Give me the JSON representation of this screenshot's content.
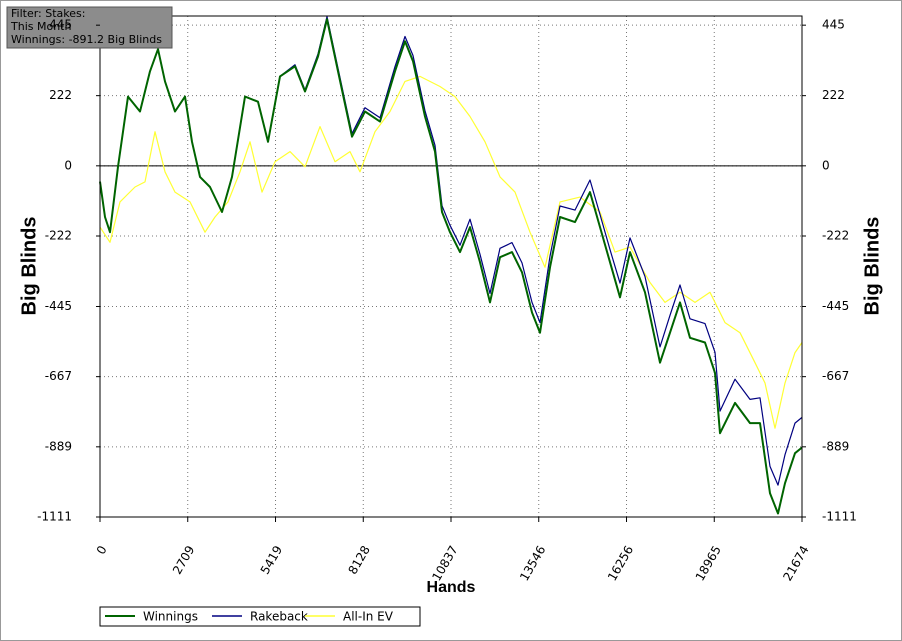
{
  "chart_data": {
    "type": "line",
    "annotations": [
      "Filter: Stakes:",
      "This Month",
      "Winnings: -891.2 Big Blinds"
    ],
    "xlabel": "Hands",
    "ylabel": "Big Blinds",
    "xlim": [
      0,
      21674
    ],
    "xticks": [
      0,
      2709,
      5419,
      8128,
      10837,
      13546,
      16256,
      18965,
      21674
    ],
    "ylim": [
      -1111,
      474
    ],
    "yticks": [
      445,
      222,
      0,
      -222,
      -445,
      -667,
      -889,
      -1111
    ],
    "grid": true,
    "series": [
      {
        "name": "Winnings",
        "color": "#006400",
        "x": [
          0,
          154,
          309,
          556,
          865,
          1235,
          1544,
          1791,
          2007,
          2316,
          2624,
          2841,
          3088,
          3396,
          3767,
          4076,
          4477,
          4878,
          5187,
          5558,
          6021,
          6329,
          6731,
          7009,
          7348,
          7781,
          8182,
          8645,
          9108,
          9417,
          9664,
          10034,
          10343,
          10559,
          10806,
          11115,
          11424,
          11733,
          12041,
          12350,
          12721,
          13029,
          13338,
          13585,
          13894,
          14203,
          14666,
          15129,
          15438,
          15746,
          16055,
          16364,
          16827,
          17290,
          17599,
          17908,
          18216,
          18679,
          18988,
          19143,
          19606,
          20069,
          20378,
          20686,
          20933,
          21148,
          21458,
          21674
        ],
        "values": [
          -50,
          -162,
          -210,
          -3,
          219,
          172,
          299,
          369,
          267,
          172,
          219,
          76,
          -35,
          -67,
          -146,
          -35,
          219,
          203,
          76,
          283,
          315,
          235,
          346,
          464,
          299,
          92,
          172,
          140,
          299,
          394,
          331,
          156,
          45,
          -146,
          -210,
          -273,
          -194,
          -305,
          -432,
          -289,
          -273,
          -337,
          -464,
          -528,
          -321,
          -162,
          -178,
          -83,
          -194,
          -305,
          -416,
          -273,
          -400,
          -623,
          -528,
          -432,
          -544,
          -559,
          -655,
          -846,
          -750,
          -814,
          -814,
          -1036,
          -1100,
          -1004,
          -909,
          -891.2
        ]
      },
      {
        "name": "Rakeback",
        "color": "#000080",
        "x": [
          0,
          154,
          309,
          556,
          865,
          1235,
          1544,
          1791,
          2007,
          2316,
          2624,
          2841,
          3088,
          3396,
          3767,
          4076,
          4477,
          4878,
          5187,
          5558,
          6021,
          6329,
          6731,
          7009,
          7348,
          7781,
          8182,
          8645,
          9108,
          9417,
          9664,
          10034,
          10343,
          10559,
          10806,
          11115,
          11424,
          11733,
          12041,
          12350,
          12721,
          13029,
          13338,
          13585,
          13894,
          14203,
          14666,
          15129,
          15438,
          15746,
          16055,
          16364,
          16827,
          17290,
          17599,
          17908,
          18216,
          18679,
          18988,
          19143,
          19606,
          20069,
          20378,
          20686,
          20933,
          21148,
          21458,
          21674
        ],
        "values": [
          -50,
          -162,
          -210,
          -3,
          219,
          172,
          299,
          369,
          267,
          172,
          219,
          76,
          -35,
          -67,
          -146,
          -35,
          219,
          203,
          76,
          283,
          320,
          240,
          354,
          472,
          309,
          102,
          184,
          152,
          314,
          409,
          349,
          174,
          65,
          -126,
          -188,
          -251,
          -169,
          -280,
          -404,
          -261,
          -243,
          -307,
          -432,
          -496,
          -286,
          -127,
          -140,
          -45,
          -154,
          -265,
          -371,
          -228,
          -350,
          -573,
          -473,
          -377,
          -484,
          -499,
          -590,
          -776,
          -675,
          -739,
          -734,
          -951,
          -1010,
          -914,
          -814,
          -796
        ]
      },
      {
        "name": "All-In EV",
        "color": "#ffff33",
        "x": [
          0,
          309,
          618,
          1081,
          1389,
          1698,
          2007,
          2316,
          2779,
          3242,
          3551,
          3952,
          4323,
          4631,
          5002,
          5403,
          5866,
          6329,
          6793,
          7256,
          7719,
          8028,
          8491,
          8954,
          9417,
          9880,
          10498,
          10961,
          11424,
          11887,
          12350,
          12813,
          13276,
          13739,
          14203,
          14820,
          15438,
          15901,
          16364,
          16981,
          17444,
          17908,
          18371,
          18834,
          19297,
          19760,
          20223,
          20532,
          20841,
          21149,
          21458,
          21674
        ],
        "values": [
          -194,
          -242,
          -114,
          -67,
          -51,
          108,
          -19,
          -83,
          -114,
          -210,
          -162,
          -114,
          -19,
          76,
          -83,
          13,
          45,
          -3,
          124,
          13,
          45,
          -19,
          108,
          172,
          267,
          283,
          251,
          219,
          156,
          76,
          -35,
          -83,
          -210,
          -321,
          -114,
          -99,
          -146,
          -273,
          -257,
          -369,
          -432,
          -400,
          -432,
          -400,
          -496,
          -528,
          -623,
          -687,
          -830,
          -687,
          -591,
          -559
        ]
      }
    ]
  }
}
